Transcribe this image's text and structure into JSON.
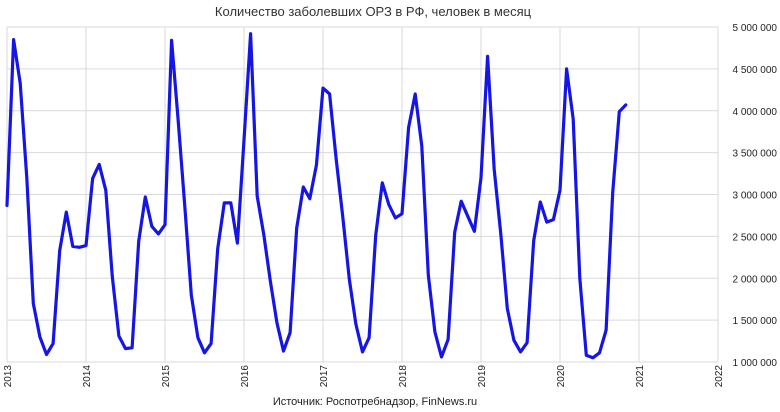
{
  "chart_data": {
    "type": "line",
    "title": "Количество заболевших ОРЗ в РФ, человек в месяц",
    "source": "Источник: Роспотребнадзор, FinNews.ru",
    "xlabel": "",
    "ylabel": "",
    "xlim": [
      2013,
      2022
    ],
    "ylim": [
      1000000,
      5000000
    ],
    "x_ticks": [
      "2013",
      "2014",
      "2015",
      "2016",
      "2017",
      "2018",
      "2019",
      "2020",
      "2021",
      "2022"
    ],
    "y_ticks": [
      "1 000 000",
      "1 500 000",
      "2 000 000",
      "2 500 000",
      "3 000 000",
      "3 500 000",
      "4 000 000",
      "4 500 000",
      "5 000 000"
    ],
    "y_tick_values": [
      1000000,
      1500000,
      2000000,
      2500000,
      3000000,
      3500000,
      4000000,
      4500000,
      5000000
    ],
    "grid": true,
    "legend": "none",
    "line_color": "#1515E6",
    "grid_color": "#D9D9D9",
    "series": [
      {
        "x": [
          2013.0,
          2013.083,
          2013.167,
          2013.25,
          2013.333,
          2013.417,
          2013.5,
          2013.583,
          2013.667,
          2013.75,
          2013.833,
          2013.917,
          2014.0,
          2014.083,
          2014.167,
          2014.25,
          2014.333,
          2014.417,
          2014.5,
          2014.583,
          2014.667,
          2014.75,
          2014.833,
          2014.917,
          2015.0,
          2015.083,
          2015.167,
          2015.25,
          2015.333,
          2015.417,
          2015.5,
          2015.583,
          2015.667,
          2015.75,
          2015.833,
          2015.917,
          2016.0,
          2016.083,
          2016.167,
          2016.25,
          2016.333,
          2016.417,
          2016.5,
          2016.583,
          2016.667,
          2016.75,
          2016.833,
          2016.917,
          2017.0,
          2017.083,
          2017.167,
          2017.25,
          2017.333,
          2017.417,
          2017.5,
          2017.583,
          2017.667,
          2017.75,
          2017.833,
          2017.917,
          2018.0,
          2018.083,
          2018.167,
          2018.25,
          2018.333,
          2018.417,
          2018.5,
          2018.583,
          2018.667,
          2018.75,
          2018.833,
          2018.917,
          2019.0,
          2019.083,
          2019.167,
          2019.25,
          2019.333,
          2019.417,
          2019.5,
          2019.583,
          2019.667,
          2019.75,
          2019.833,
          2019.917,
          2020.0,
          2020.083,
          2020.167,
          2020.25,
          2020.333,
          2020.417,
          2020.5,
          2020.583,
          2020.667,
          2020.75,
          2020.833
        ],
        "y": [
          2870000,
          4850000,
          4330000,
          3200000,
          1700000,
          1300000,
          1090000,
          1220000,
          2330000,
          2790000,
          2380000,
          2370000,
          2390000,
          3190000,
          3360000,
          3050000,
          2020000,
          1310000,
          1160000,
          1170000,
          2440000,
          2970000,
          2620000,
          2530000,
          2640000,
          4840000,
          3880000,
          2860000,
          1800000,
          1290000,
          1110000,
          1220000,
          2350000,
          2900000,
          2900000,
          2420000,
          3650000,
          4920000,
          2980000,
          2520000,
          1970000,
          1470000,
          1130000,
          1350000,
          2600000,
          3090000,
          2950000,
          3350000,
          4270000,
          4200000,
          3420000,
          2730000,
          1990000,
          1450000,
          1120000,
          1290000,
          2510000,
          3140000,
          2880000,
          2720000,
          2770000,
          3800000,
          4200000,
          3580000,
          2040000,
          1360000,
          1060000,
          1270000,
          2550000,
          2920000,
          2740000,
          2560000,
          3200000,
          4650000,
          3300000,
          2530000,
          1640000,
          1260000,
          1120000,
          1230000,
          2450000,
          2910000,
          2670000,
          2700000,
          3050000,
          4500000,
          3900000,
          2000000,
          1080000,
          1050000,
          1110000,
          1380000,
          3020000,
          3990000,
          4070000
        ]
      }
    ]
  }
}
